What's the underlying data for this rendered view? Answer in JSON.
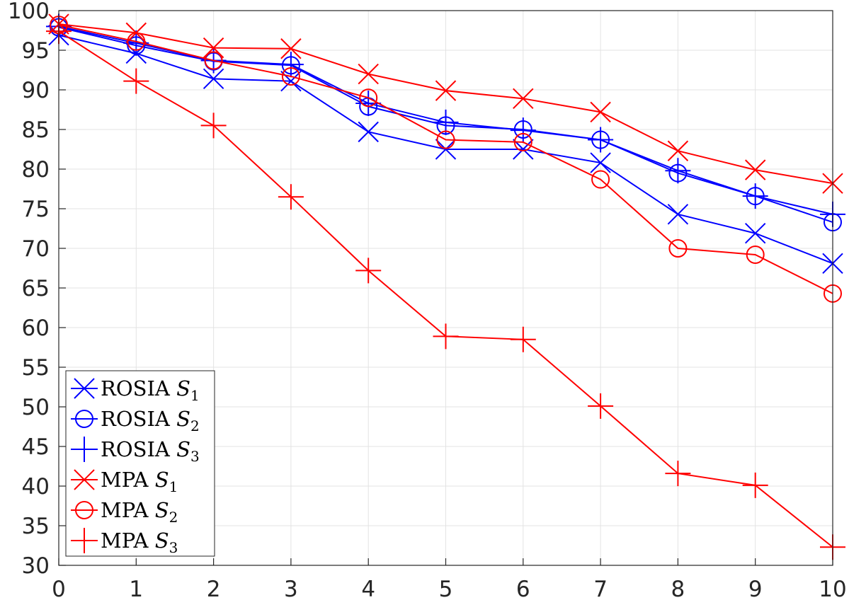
{
  "chart_data": {
    "type": "line",
    "title": "",
    "xlabel": "",
    "ylabel": "",
    "xlim": [
      0,
      10
    ],
    "ylim": [
      30,
      100
    ],
    "grid": true,
    "legend_position": "bottom-left",
    "x": [
      0,
      1,
      2,
      3,
      4,
      5,
      6,
      7,
      8,
      9,
      10
    ],
    "x_ticks": [
      "0",
      "1",
      "2",
      "3",
      "4",
      "5",
      "6",
      "7",
      "8",
      "9",
      "10"
    ],
    "y_ticks": [
      "30",
      "35",
      "40",
      "45",
      "50",
      "55",
      "60",
      "65",
      "70",
      "75",
      "80",
      "85",
      "90",
      "95",
      "100"
    ],
    "series": [
      {
        "name": "ROSIA",
        "set_symbol": "S",
        "set_index": "1",
        "color": "#0000ff",
        "marker": "x",
        "values": [
          96.9,
          94.6,
          91.4,
          91.1,
          84.7,
          82.5,
          82.5,
          80.8,
          74.3,
          71.9,
          68.1
        ]
      },
      {
        "name": "ROSIA",
        "set_symbol": "S",
        "set_index": "2",
        "color": "#0000ff",
        "marker": "o",
        "values": [
          97.9,
          95.6,
          93.6,
          93.1,
          87.9,
          85.5,
          85.0,
          83.7,
          79.5,
          76.6,
          73.3
        ]
      },
      {
        "name": "ROSIA",
        "set_symbol": "S",
        "set_index": "3",
        "color": "#0000ff",
        "marker": "+",
        "values": [
          98.0,
          95.9,
          93.7,
          93.2,
          88.3,
          85.9,
          84.9,
          83.7,
          79.8,
          76.6,
          74.3
        ]
      },
      {
        "name": "MPA",
        "set_symbol": "S",
        "set_index": "1",
        "color": "#ff0000",
        "marker": "x",
        "values": [
          98.3,
          97.2,
          95.3,
          95.2,
          92.0,
          89.9,
          88.9,
          87.2,
          82.3,
          79.9,
          78.2
        ]
      },
      {
        "name": "MPA",
        "set_symbol": "S",
        "set_index": "2",
        "color": "#ff0000",
        "marker": "o",
        "values": [
          98.2,
          96.1,
          93.7,
          91.7,
          89.0,
          83.7,
          83.4,
          78.7,
          70.0,
          69.2,
          64.3
        ]
      },
      {
        "name": "MPA",
        "set_symbol": "S",
        "set_index": "3",
        "color": "#ff0000",
        "marker": "+",
        "values": [
          97.4,
          91.1,
          85.5,
          76.5,
          67.2,
          58.9,
          58.5,
          50.1,
          41.6,
          40.1,
          32.3
        ]
      }
    ]
  }
}
